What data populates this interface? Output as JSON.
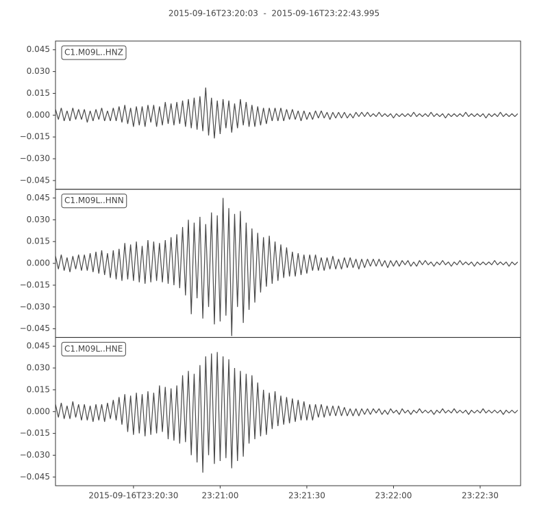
{
  "chart_data": {
    "type": "line",
    "title": "2015-09-16T23:20:03  -  2015-09-16T23:22:43.995",
    "xlim": [
      "2015-09-16T23:20:03",
      "2015-09-16T23:22:43.995"
    ],
    "xticks": [
      {
        "value": "2015-09-16T23:20:30",
        "label": "2015-09-16T23:20:30"
      },
      {
        "value": "2015-09-16T23:21:00",
        "label": "23:21:00"
      },
      {
        "value": "2015-09-16T23:21:30",
        "label": "23:21:30"
      },
      {
        "value": "2015-09-16T23:22:00",
        "label": "23:22:00"
      },
      {
        "value": "2015-09-16T23:22:30",
        "label": "23:22:30"
      }
    ],
    "ylim": [
      -0.051,
      0.051
    ],
    "yticks": [
      {
        "value": -0.045,
        "label": "−0.045"
      },
      {
        "value": -0.03,
        "label": "−0.030"
      },
      {
        "value": -0.015,
        "label": "−0.015"
      },
      {
        "value": 0,
        "label": "0.000"
      },
      0.015,
      {
        "value": 0.03,
        "label": "0.030"
      },
      0.045
    ],
    "x": [
      "2015-09-16T23:20:03",
      "2015-09-16T23:20:04",
      "2015-09-16T23:20:05",
      "2015-09-16T23:20:06",
      "2015-09-16T23:20:07",
      "2015-09-16T23:20:08",
      "2015-09-16T23:20:09",
      "2015-09-16T23:20:10",
      "2015-09-16T23:20:11",
      "2015-09-16T23:20:12",
      "2015-09-16T23:20:13",
      "2015-09-16T23:20:14",
      "2015-09-16T23:20:15",
      "2015-09-16T23:20:16",
      "2015-09-16T23:20:17",
      "2015-09-16T23:20:18",
      "2015-09-16T23:20:19",
      "2015-09-16T23:20:20",
      "2015-09-16T23:20:21",
      "2015-09-16T23:20:22",
      "2015-09-16T23:20:23",
      "2015-09-16T23:20:24",
      "2015-09-16T23:20:25",
      "2015-09-16T23:20:26",
      "2015-09-16T23:20:27",
      "2015-09-16T23:20:28",
      "2015-09-16T23:20:29",
      "2015-09-16T23:20:30",
      "2015-09-16T23:20:31",
      "2015-09-16T23:20:32",
      "2015-09-16T23:20:33",
      "2015-09-16T23:20:34",
      "2015-09-16T23:20:35",
      "2015-09-16T23:20:36",
      "2015-09-16T23:20:37",
      "2015-09-16T23:20:38",
      "2015-09-16T23:20:39",
      "2015-09-16T23:20:40",
      "2015-09-16T23:20:41",
      "2015-09-16T23:20:42",
      "2015-09-16T23:20:43",
      "2015-09-16T23:20:44",
      "2015-09-16T23:20:45",
      "2015-09-16T23:20:46",
      "2015-09-16T23:20:47",
      "2015-09-16T23:20:48",
      "2015-09-16T23:20:49",
      "2015-09-16T23:20:50",
      "2015-09-16T23:20:51",
      "2015-09-16T23:20:52",
      "2015-09-16T23:20:53",
      "2015-09-16T23:20:54",
      "2015-09-16T23:20:55",
      "2015-09-16T23:20:56",
      "2015-09-16T23:20:57",
      "2015-09-16T23:20:58",
      "2015-09-16T23:20:59",
      "2015-09-16T23:21:00",
      "2015-09-16T23:21:01",
      "2015-09-16T23:21:02",
      "2015-09-16T23:21:03",
      "2015-09-16T23:21:04",
      "2015-09-16T23:21:05",
      "2015-09-16T23:21:06",
      "2015-09-16T23:21:07",
      "2015-09-16T23:21:08",
      "2015-09-16T23:21:09",
      "2015-09-16T23:21:10",
      "2015-09-16T23:21:11",
      "2015-09-16T23:21:12",
      "2015-09-16T23:21:13",
      "2015-09-16T23:21:14",
      "2015-09-16T23:21:15",
      "2015-09-16T23:21:16",
      "2015-09-16T23:21:17",
      "2015-09-16T23:21:18",
      "2015-09-16T23:21:19",
      "2015-09-16T23:21:20",
      "2015-09-16T23:21:21",
      "2015-09-16T23:21:22",
      "2015-09-16T23:21:23",
      "2015-09-16T23:21:24",
      "2015-09-16T23:21:25",
      "2015-09-16T23:21:26",
      "2015-09-16T23:21:27",
      "2015-09-16T23:21:28",
      "2015-09-16T23:21:29",
      "2015-09-16T23:21:30",
      "2015-09-16T23:21:31",
      "2015-09-16T23:21:32",
      "2015-09-16T23:21:33",
      "2015-09-16T23:21:34",
      "2015-09-16T23:21:35",
      "2015-09-16T23:21:36",
      "2015-09-16T23:21:37",
      "2015-09-16T23:21:38",
      "2015-09-16T23:21:39",
      "2015-09-16T23:21:40",
      "2015-09-16T23:21:41",
      "2015-09-16T23:21:42",
      "2015-09-16T23:21:43",
      "2015-09-16T23:21:44",
      "2015-09-16T23:21:45",
      "2015-09-16T23:21:46",
      "2015-09-16T23:21:47",
      "2015-09-16T23:21:48",
      "2015-09-16T23:21:49",
      "2015-09-16T23:21:50",
      "2015-09-16T23:21:51",
      "2015-09-16T23:21:52",
      "2015-09-16T23:21:53",
      "2015-09-16T23:21:54",
      "2015-09-16T23:21:55",
      "2015-09-16T23:21:56",
      "2015-09-16T23:21:57",
      "2015-09-16T23:21:58",
      "2015-09-16T23:21:59",
      "2015-09-16T23:22:00",
      "2015-09-16T23:22:01",
      "2015-09-16T23:22:02",
      "2015-09-16T23:22:03",
      "2015-09-16T23:22:04",
      "2015-09-16T23:22:05",
      "2015-09-16T23:22:06",
      "2015-09-16T23:22:07",
      "2015-09-16T23:22:08",
      "2015-09-16T23:22:09",
      "2015-09-16T23:22:10",
      "2015-09-16T23:22:11",
      "2015-09-16T23:22:12",
      "2015-09-16T23:22:13",
      "2015-09-16T23:22:14",
      "2015-09-16T23:22:15",
      "2015-09-16T23:22:16",
      "2015-09-16T23:22:17",
      "2015-09-16T23:22:18",
      "2015-09-16T23:22:19",
      "2015-09-16T23:22:20",
      "2015-09-16T23:22:21",
      "2015-09-16T23:22:22",
      "2015-09-16T23:22:23",
      "2015-09-16T23:22:24",
      "2015-09-16T23:22:25",
      "2015-09-16T23:22:26",
      "2015-09-16T23:22:27",
      "2015-09-16T23:22:28",
      "2015-09-16T23:22:29",
      "2015-09-16T23:22:30",
      "2015-09-16T23:22:31",
      "2015-09-16T23:22:32",
      "2015-09-16T23:22:33",
      "2015-09-16T23:22:34",
      "2015-09-16T23:22:35",
      "2015-09-16T23:22:36",
      "2015-09-16T23:22:37",
      "2015-09-16T23:22:38",
      "2015-09-16T23:22:39",
      "2015-09-16T23:22:40",
      "2015-09-16T23:22:41",
      "2015-09-16T23:22:42",
      "2015-09-16T23:22:43"
    ],
    "series": [
      {
        "name": "C1.M09L..HNZ",
        "color": "#474747",
        "values": [
          0.004,
          -0.003,
          0.005,
          -0.004,
          0.003,
          -0.004,
          0.005,
          -0.003,
          0.004,
          -0.003,
          0.004,
          -0.005,
          0.003,
          -0.004,
          0.004,
          -0.003,
          0.005,
          -0.004,
          0.003,
          -0.004,
          0.005,
          -0.004,
          0.006,
          -0.005,
          0.007,
          -0.006,
          0.005,
          -0.008,
          0.006,
          -0.007,
          0.006,
          -0.008,
          0.007,
          -0.005,
          0.007,
          -0.008,
          0.006,
          -0.007,
          0.009,
          -0.006,
          0.008,
          -0.007,
          0.009,
          -0.006,
          0.01,
          -0.008,
          0.011,
          -0.009,
          0.012,
          -0.01,
          0.013,
          -0.011,
          0.019,
          -0.014,
          0.012,
          -0.016,
          0.01,
          -0.013,
          0.011,
          -0.009,
          0.01,
          -0.012,
          0.008,
          -0.009,
          0.011,
          -0.007,
          0.009,
          -0.008,
          0.007,
          -0.008,
          0.006,
          -0.007,
          0.005,
          -0.006,
          0.005,
          -0.004,
          0.005,
          -0.004,
          0.005,
          -0.004,
          0.004,
          -0.003,
          0.004,
          -0.003,
          0.003,
          -0.004,
          0.003,
          -0.003,
          0.002,
          -0.003,
          0.003,
          -0.002,
          0.003,
          -0.002,
          0.002,
          -0.003,
          0.002,
          -0.002,
          0.002,
          -0.002,
          0.002,
          -0.002,
          0.001,
          -0.002,
          0.002,
          -0.001,
          0.002,
          -0.001,
          0.002,
          -0.001,
          0.001,
          -0.001,
          0.002,
          -0.001,
          0.001,
          -0.001,
          0.001,
          -0.002,
          0.001,
          -0.001,
          0.001,
          -0.001,
          0.001,
          -0.001,
          0.002,
          -0.001,
          0.001,
          -0.001,
          0.001,
          -0.001,
          0.002,
          -0.001,
          0.001,
          -0.001,
          0.001,
          -0.002,
          0.001,
          -0.001,
          0.001,
          -0.001,
          0.001,
          -0.001,
          0.002,
          -0.001,
          0.001,
          -0.001,
          0.001,
          -0.001,
          0.001,
          -0.002,
          0.001,
          -0.001,
          0.001,
          -0.001,
          0.002,
          -0.001,
          0.001,
          -0.001,
          0.001,
          -0.001,
          0.001
        ]
      },
      {
        "name": "C1.M09L..HNN",
        "color": "#474747",
        "values": [
          0.005,
          -0.004,
          0.006,
          -0.005,
          0.004,
          -0.006,
          0.005,
          -0.004,
          0.006,
          -0.005,
          0.006,
          -0.005,
          0.007,
          -0.006,
          0.008,
          -0.007,
          0.009,
          -0.008,
          0.007,
          -0.01,
          0.009,
          -0.011,
          0.01,
          -0.012,
          0.014,
          -0.011,
          0.013,
          -0.012,
          0.015,
          -0.013,
          0.012,
          -0.014,
          0.016,
          -0.013,
          0.015,
          -0.012,
          0.014,
          -0.013,
          0.016,
          -0.014,
          0.018,
          -0.015,
          0.02,
          -0.017,
          0.025,
          -0.022,
          0.03,
          -0.035,
          0.028,
          -0.024,
          0.032,
          -0.038,
          0.027,
          -0.03,
          0.035,
          -0.042,
          0.033,
          -0.04,
          0.045,
          -0.036,
          0.038,
          -0.05,
          0.034,
          -0.03,
          0.036,
          -0.041,
          0.028,
          -0.032,
          0.024,
          -0.027,
          0.021,
          -0.02,
          0.018,
          -0.016,
          0.019,
          -0.014,
          0.015,
          -0.012,
          0.013,
          -0.01,
          0.011,
          -0.009,
          0.008,
          -0.009,
          0.007,
          -0.008,
          0.006,
          -0.007,
          0.006,
          -0.005,
          0.006,
          -0.005,
          0.004,
          -0.005,
          0.004,
          -0.004,
          0.005,
          -0.004,
          0.003,
          -0.004,
          0.004,
          -0.003,
          0.004,
          -0.003,
          0.003,
          -0.004,
          0.003,
          -0.003,
          0.003,
          -0.002,
          0.003,
          -0.002,
          0.003,
          -0.002,
          0.002,
          -0.003,
          0.002,
          -0.002,
          0.002,
          -0.002,
          0.002,
          -0.001,
          0.002,
          -0.002,
          0.001,
          -0.002,
          0.002,
          -0.001,
          0.002,
          -0.001,
          0.001,
          -0.002,
          0.001,
          -0.001,
          0.002,
          -0.001,
          0.001,
          -0.002,
          0.001,
          -0.001,
          0.002,
          -0.001,
          0.001,
          -0.001,
          0.001,
          -0.002,
          0.001,
          -0.001,
          0.001,
          -0.001,
          0.001,
          -0.001,
          0.002,
          -0.001,
          0.001,
          -0.001,
          0.001,
          -0.002,
          0.001,
          -0.001,
          0.001
        ]
      },
      {
        "name": "C1.M09L..HNE",
        "color": "#474747",
        "values": [
          0.005,
          -0.004,
          0.006,
          -0.005,
          0.004,
          -0.005,
          0.007,
          -0.004,
          0.005,
          -0.006,
          0.005,
          -0.006,
          0.004,
          -0.007,
          0.005,
          -0.006,
          0.005,
          -0.007,
          0.006,
          -0.005,
          0.008,
          -0.006,
          0.01,
          -0.009,
          0.012,
          -0.014,
          0.011,
          -0.016,
          0.013,
          -0.015,
          0.012,
          -0.017,
          0.014,
          -0.016,
          0.013,
          -0.015,
          0.018,
          -0.014,
          0.017,
          -0.019,
          0.016,
          -0.02,
          0.018,
          -0.022,
          0.025,
          -0.021,
          0.028,
          -0.03,
          0.026,
          -0.035,
          0.032,
          -0.042,
          0.038,
          -0.03,
          0.04,
          -0.036,
          0.041,
          -0.034,
          0.038,
          -0.032,
          0.036,
          -0.039,
          0.03,
          -0.034,
          0.028,
          -0.031,
          0.026,
          -0.022,
          0.025,
          -0.019,
          0.02,
          -0.017,
          0.015,
          -0.016,
          0.013,
          -0.012,
          0.014,
          -0.01,
          0.011,
          -0.009,
          0.01,
          -0.008,
          0.009,
          -0.007,
          0.008,
          -0.006,
          0.007,
          -0.006,
          0.005,
          -0.006,
          0.005,
          -0.004,
          0.005,
          -0.004,
          0.004,
          -0.003,
          0.004,
          -0.003,
          0.004,
          -0.003,
          0.003,
          -0.003,
          0.002,
          -0.003,
          0.002,
          -0.003,
          0.002,
          -0.002,
          0.002,
          -0.002,
          0.002,
          -0.001,
          0.002,
          -0.002,
          0.001,
          -0.002,
          0.002,
          -0.001,
          0.001,
          -0.002,
          0.002,
          -0.001,
          0.001,
          -0.002,
          0.001,
          -0.001,
          0.002,
          -0.001,
          0.001,
          -0.001,
          0.001,
          -0.002,
          0.001,
          -0.001,
          0.002,
          -0.001,
          0.001,
          -0.001,
          0.002,
          -0.001,
          0.001,
          -0.001,
          0.001,
          -0.002,
          0.001,
          -0.001,
          0.001,
          -0.001,
          0.002,
          -0.001,
          0.001,
          -0.001,
          0.001,
          -0.001,
          0.001,
          -0.002,
          0.001,
          -0.001,
          0.001,
          -0.001,
          0.001
        ]
      }
    ]
  }
}
